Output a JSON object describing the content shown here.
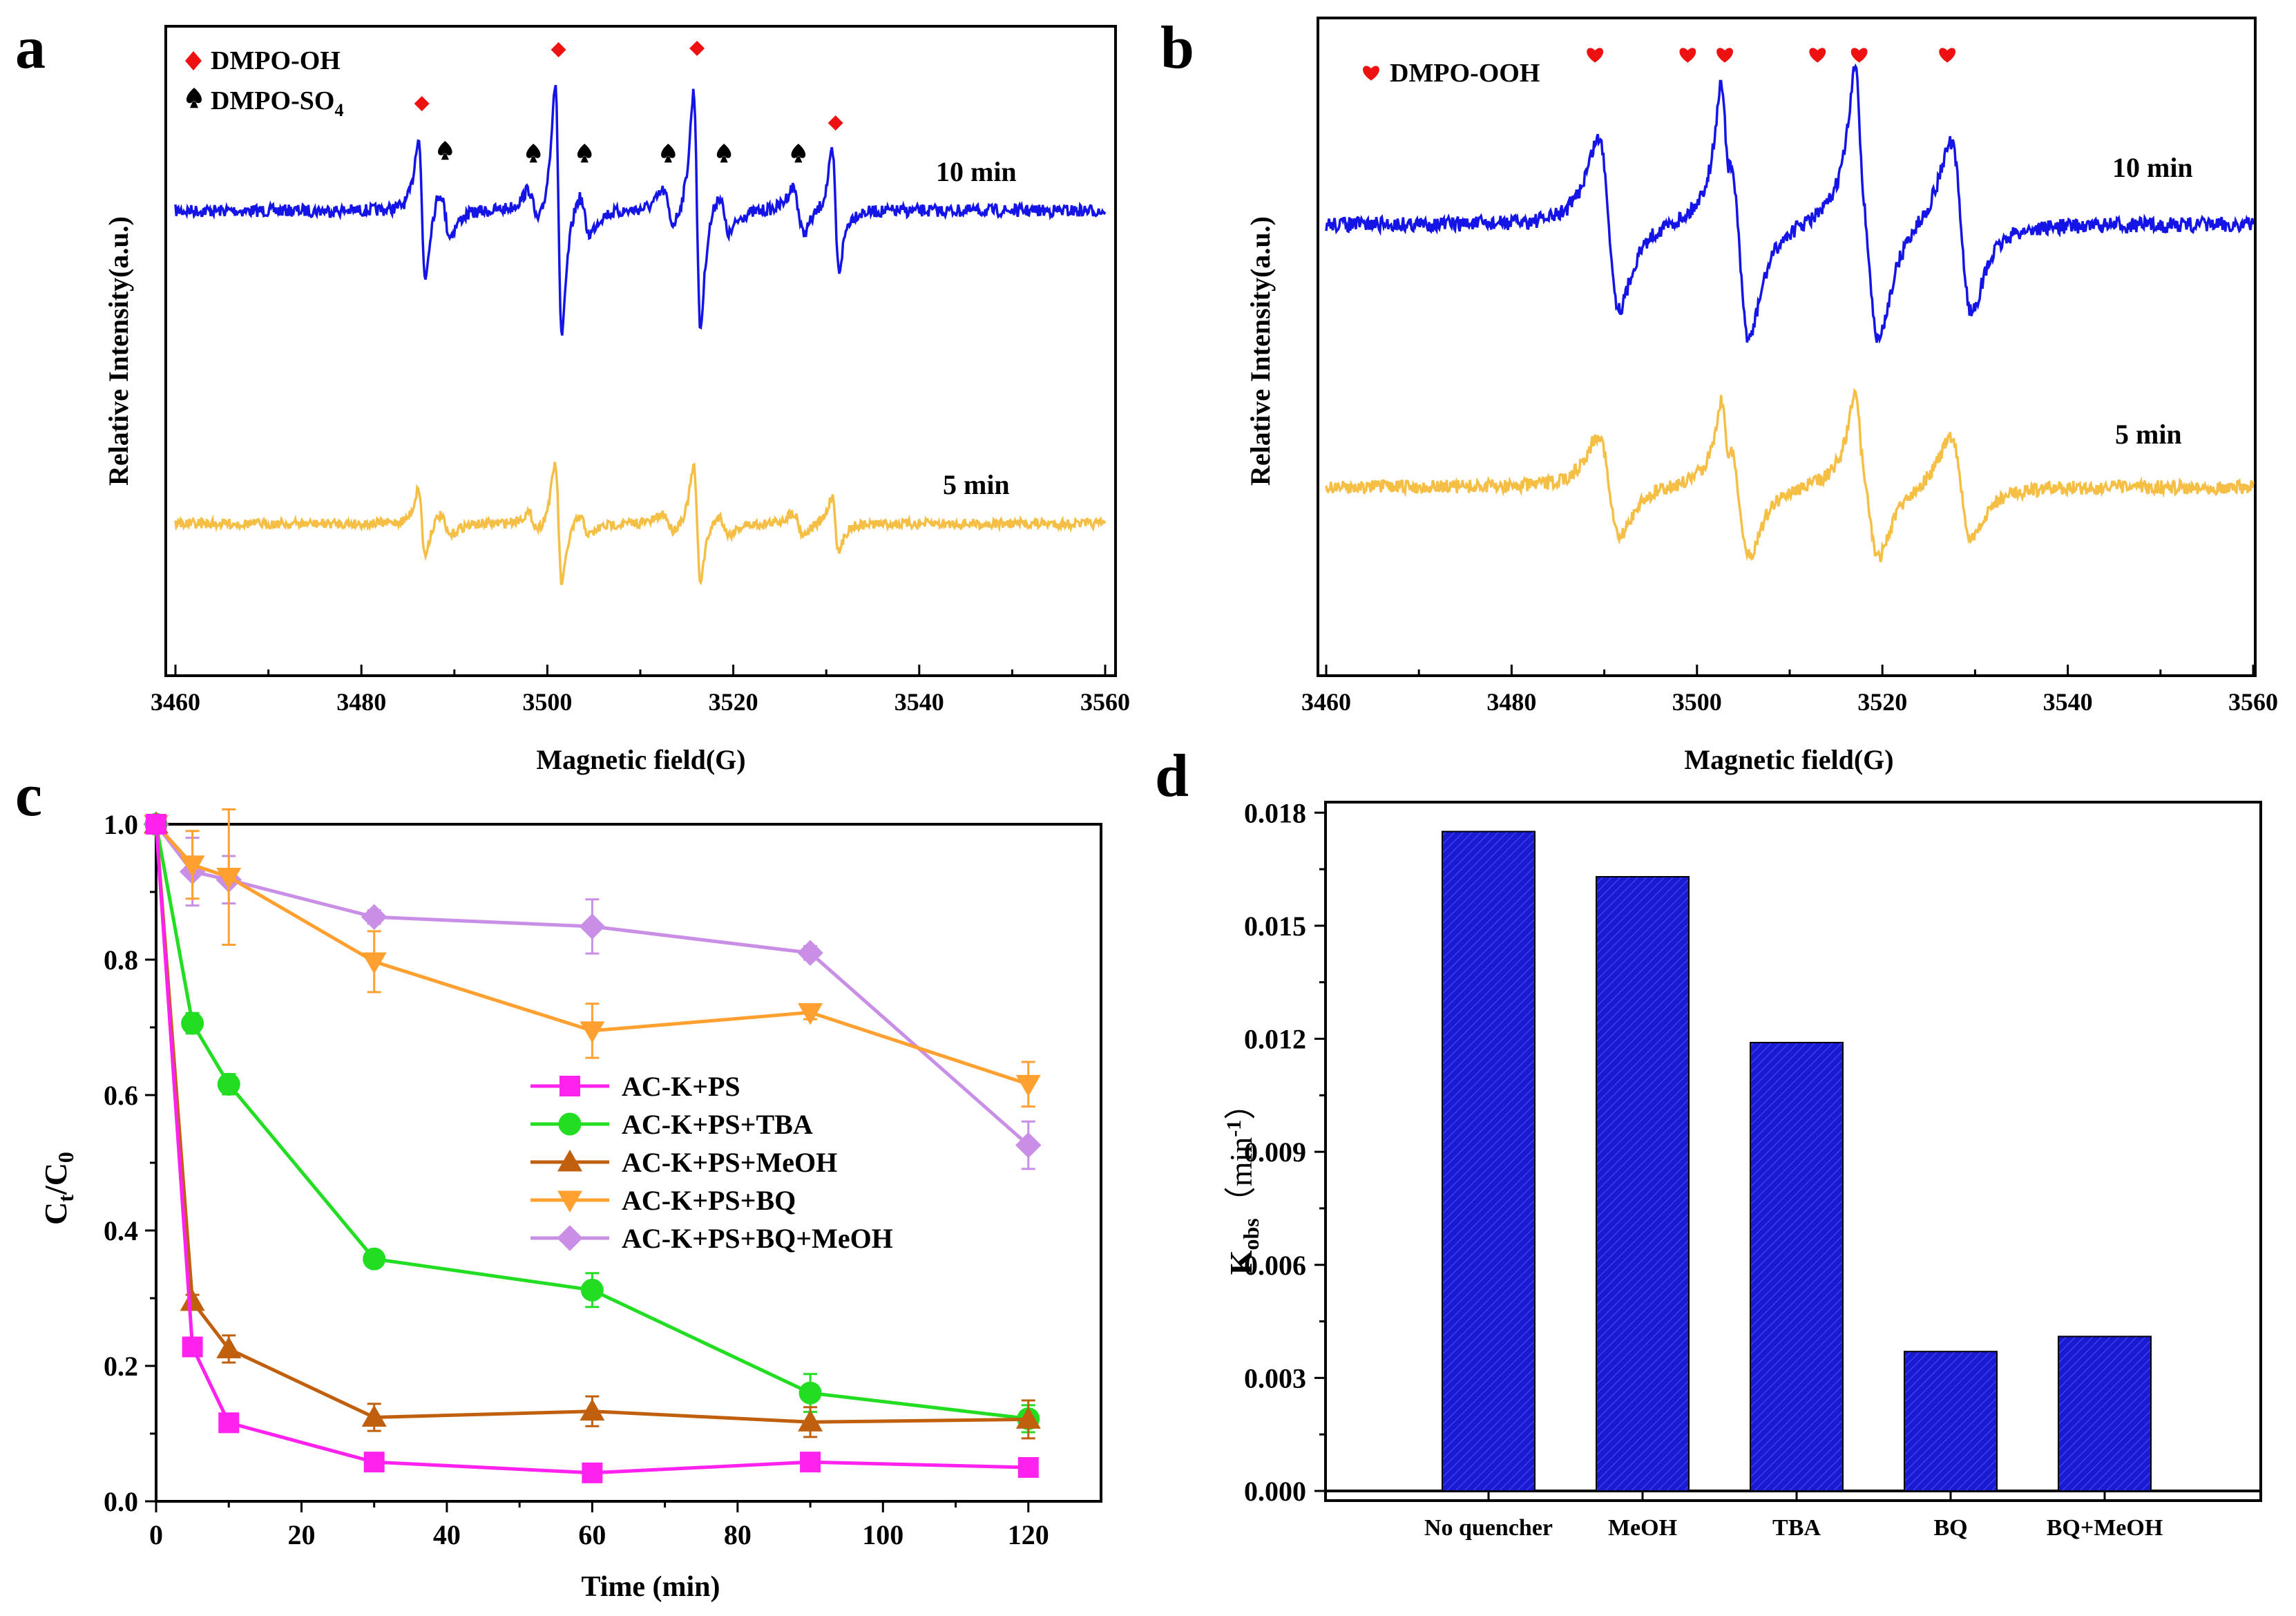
{
  "panels": {
    "a": {
      "label": "a"
    },
    "b": {
      "label": "b"
    },
    "c": {
      "label": "c"
    },
    "d": {
      "label": "d"
    }
  },
  "colors": {
    "blue": "#1414e6",
    "yellow": "#f5bf45",
    "red": "#ee1111",
    "pink": "#ff22ee",
    "green": "#22dd22",
    "brown": "#c0600e",
    "orange": "#ffa030",
    "purple": "#c98ee6",
    "bar": "#1a1ad0"
  },
  "chart_data": [
    {
      "panel": "a",
      "type": "line",
      "title": "",
      "xlabel": "Magnetic field(G)",
      "ylabel": "Relative Intensity(a.u.)",
      "xlim": [
        3460,
        3560
      ],
      "xticks": [
        3460,
        3480,
        3500,
        3520,
        3540,
        3560
      ],
      "legend": [
        {
          "marker": "diamond",
          "label": "DMPO-OH"
        },
        {
          "marker": "spade",
          "label": "DMPO-SO",
          "sub": "4"
        }
      ],
      "series": [
        {
          "name": "10 min",
          "color": "blue"
        },
        {
          "name": "5 min",
          "color": "yellow"
        }
      ],
      "peaks_oh": [
        3486.5,
        3501.2,
        3516.1,
        3531.0
      ],
      "peaks_so4": [
        3489.0,
        3498.5,
        3504.0,
        3513.0,
        3519.0,
        3527.0
      ]
    },
    {
      "panel": "b",
      "type": "line",
      "title": "",
      "xlabel": "Magnetic field(G)",
      "ylabel": "Relative Intensity(a.u.)",
      "xlim": [
        3460,
        3560
      ],
      "xticks": [
        3460,
        3480,
        3500,
        3520,
        3540,
        3560
      ],
      "legend": [
        {
          "marker": "heart",
          "label": "DMPO-OOH"
        }
      ],
      "series": [
        {
          "name": "10 min",
          "color": "blue"
        },
        {
          "name": "5 min",
          "color": "yellow"
        }
      ],
      "peaks_ooh": [
        3489.0,
        3499.0,
        3503.0,
        3513.0,
        3517.5,
        3527.0
      ]
    },
    {
      "panel": "c",
      "type": "line",
      "title": "",
      "xlabel": "Time (min)",
      "ylabel": "C",
      "ylabel_sub1": "t",
      "ylabel_mid": "/C",
      "ylabel_sub2": "0",
      "xlim": [
        0,
        130
      ],
      "ylim": [
        0,
        1.0
      ],
      "xticks": [
        0,
        20,
        40,
        60,
        80,
        100,
        120
      ],
      "yticks": [
        0.0,
        0.2,
        0.4,
        0.6,
        0.8,
        1.0
      ],
      "ytick_labels": [
        "0.0",
        "0.2",
        "0.4",
        "0.6",
        "0.8",
        "1.0"
      ],
      "x": [
        0,
        5,
        10,
        30,
        60,
        90,
        120
      ],
      "series": [
        {
          "name": "AC-K+PS",
          "color": "pink",
          "marker": "square",
          "values": [
            1.0,
            0.228,
            0.116,
            0.058,
            0.042,
            0.058,
            0.05
          ],
          "errors": [
            0,
            0.01,
            0.01,
            0.01,
            0.01,
            0.01,
            0.01
          ]
        },
        {
          "name": "AC-K+PS+TBA",
          "color": "green",
          "marker": "circle",
          "values": [
            1.0,
            0.706,
            0.616,
            0.358,
            0.312,
            0.16,
            0.122
          ],
          "errors": [
            0,
            0.015,
            0.015,
            0.01,
            0.025,
            0.028,
            0.02
          ]
        },
        {
          "name": "AC-K+PS+MeOH",
          "color": "brown",
          "marker": "triangle-up",
          "values": [
            1.0,
            0.295,
            0.225,
            0.124,
            0.133,
            0.117,
            0.121
          ],
          "errors": [
            0,
            0.01,
            0.02,
            0.02,
            0.022,
            0.022,
            0.028
          ]
        },
        {
          "name": "AC-K+PS+BQ",
          "color": "orange",
          "marker": "triangle-down",
          "values": [
            1.0,
            0.94,
            0.922,
            0.797,
            0.695,
            0.722,
            0.616
          ],
          "errors": [
            0,
            0.05,
            0.1,
            0.045,
            0.04,
            0.01,
            0.033
          ]
        },
        {
          "name": "AC-K+PS+BQ+MeOH",
          "color": "purple",
          "marker": "diamond",
          "values": [
            1.0,
            0.93,
            0.918,
            0.863,
            0.849,
            0.81,
            0.526
          ],
          "errors": [
            0,
            0.05,
            0.035,
            0.01,
            0.04,
            0.01,
            0.035
          ]
        }
      ]
    },
    {
      "panel": "d",
      "type": "bar",
      "title": "",
      "xlabel": "",
      "ylabel": "K",
      "ylabel_sub": "obs",
      "ylabel_unit": "（min",
      "ylabel_sup": "-1",
      "ylabel_end": "）",
      "ylim": [
        0,
        0.018
      ],
      "yticks": [
        0.0,
        0.003,
        0.006,
        0.009,
        0.012,
        0.015,
        0.018
      ],
      "ytick_labels": [
        "0.000",
        "0.003",
        "0.006",
        "0.009",
        "0.012",
        "0.015",
        "0.018"
      ],
      "categories": [
        "No quencher",
        "MeOH",
        "TBA",
        "BQ",
        "BQ+MeOH"
      ],
      "values": [
        0.0175,
        0.0163,
        0.0119,
        0.0037,
        0.0041
      ],
      "color": "bar"
    }
  ]
}
